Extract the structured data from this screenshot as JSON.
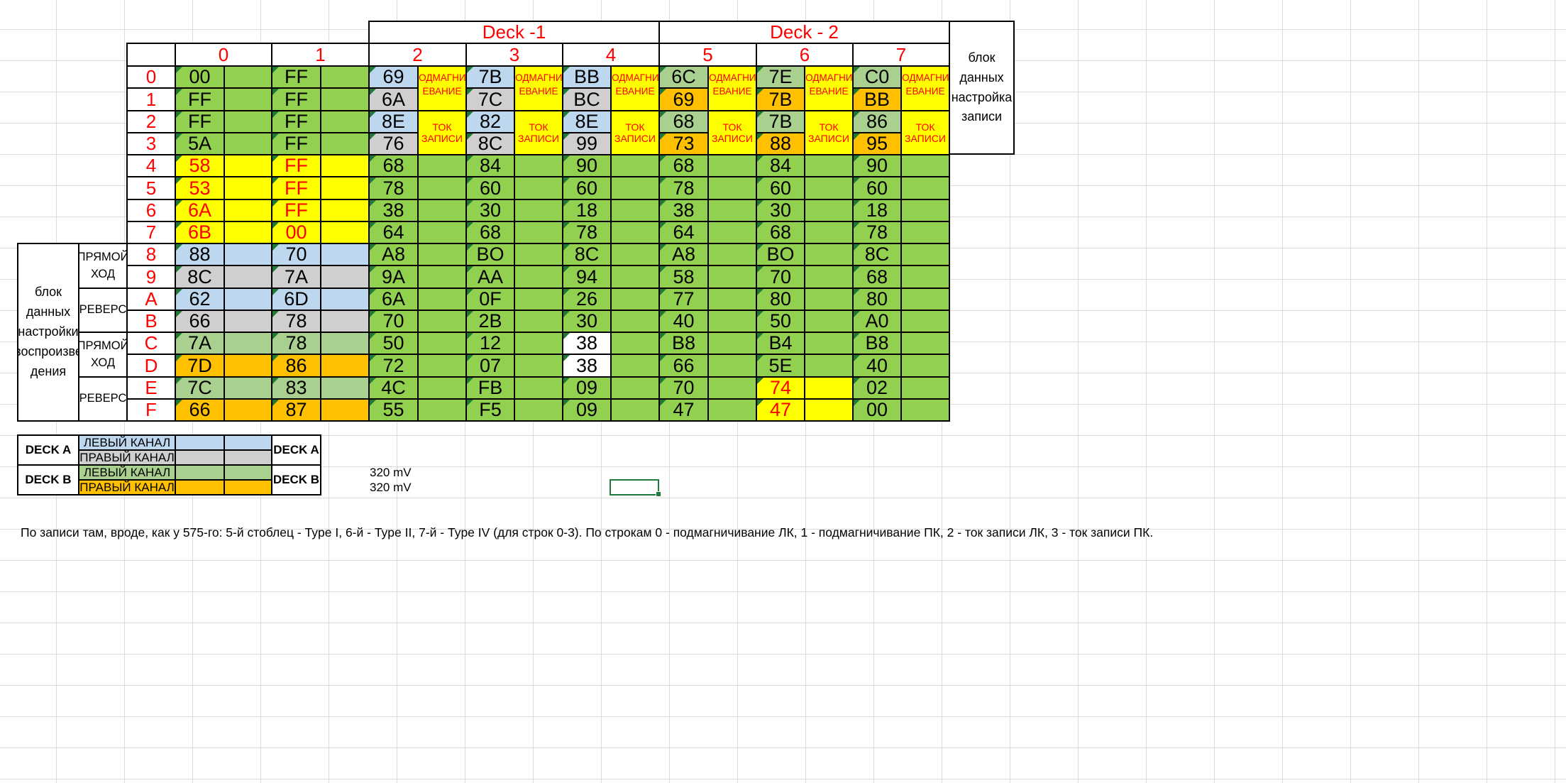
{
  "colors": {
    "green": "#92d050",
    "yellow": "#ffff00",
    "blue": "#bdd7ee",
    "gray": "#d0cece",
    "lightgreen": "#a9d08e",
    "orange": "#ffc000",
    "white": "#ffffff",
    "red": "#ff0000",
    "black": "#000000"
  },
  "groups": [
    "Deck -1",
    "Deck - 2"
  ],
  "col_headers": [
    "0",
    "1",
    "2",
    "3",
    "4",
    "5",
    "6",
    "7"
  ],
  "row_headers": [
    "0",
    "1",
    "2",
    "3",
    "4",
    "5",
    "6",
    "7",
    "8",
    "9",
    "A",
    "B",
    "C",
    "D",
    "E",
    "F"
  ],
  "write_note": "блок\nданных\nнастройка\nзаписи",
  "play_note": "блок\nданных\nнастройки\nвоспроизве\nдения",
  "direction_labels": [
    "ПРЯМОЙ\nХОД",
    "РЕВЕРС",
    "ПРЯМОЙ\nХОД",
    "РЕВЕРС"
  ],
  "bias_label": "ПОДМАГНИЧ\nЕВАНИЕ",
  "current_label": "ТОК ЗАПИСИ",
  "rows": [
    {
      "cells": [
        {
          "v": "00",
          "c": "green",
          "f": "green"
        },
        {
          "v": "FF",
          "c": "green",
          "f": "green"
        },
        {
          "v": "69",
          "c": "blue"
        },
        {
          "v": "7B",
          "c": "blue"
        },
        {
          "v": "BB",
          "c": "blue"
        },
        {
          "v": "6C",
          "c": "lightgreen"
        },
        {
          "v": "7E",
          "c": "lightgreen"
        },
        {
          "v": "C0",
          "c": "lightgreen"
        }
      ]
    },
    {
      "cells": [
        {
          "v": "FF",
          "c": "green",
          "f": "green"
        },
        {
          "v": "FF",
          "c": "green",
          "f": "green"
        },
        {
          "v": "6A",
          "c": "gray"
        },
        {
          "v": "7C",
          "c": "gray"
        },
        {
          "v": "BC",
          "c": "gray"
        },
        {
          "v": "69",
          "c": "orange"
        },
        {
          "v": "7B",
          "c": "orange"
        },
        {
          "v": "BB",
          "c": "orange"
        }
      ]
    },
    {
      "cells": [
        {
          "v": "FF",
          "c": "green",
          "f": "green"
        },
        {
          "v": "FF",
          "c": "green",
          "f": "green"
        },
        {
          "v": "8E",
          "c": "blue"
        },
        {
          "v": "82",
          "c": "blue"
        },
        {
          "v": "8E",
          "c": "blue"
        },
        {
          "v": "68",
          "c": "lightgreen"
        },
        {
          "v": "7B",
          "c": "lightgreen"
        },
        {
          "v": "86",
          "c": "lightgreen"
        }
      ]
    },
    {
      "cells": [
        {
          "v": "5A",
          "c": "green",
          "f": "green"
        },
        {
          "v": "FF",
          "c": "green",
          "f": "green"
        },
        {
          "v": "76",
          "c": "gray"
        },
        {
          "v": "8C",
          "c": "gray"
        },
        {
          "v": "99",
          "c": "gray"
        },
        {
          "v": "73",
          "c": "orange"
        },
        {
          "v": "88",
          "c": "orange"
        },
        {
          "v": "95",
          "c": "orange"
        }
      ]
    },
    {
      "cells": [
        {
          "v": "58",
          "c": "yellow",
          "f": "yellow",
          "red": true
        },
        {
          "v": "FF",
          "c": "yellow",
          "f": "yellow",
          "red": true
        },
        {
          "v": "68",
          "c": "green",
          "f": "green"
        },
        {
          "v": "84",
          "c": "green",
          "f": "green"
        },
        {
          "v": "90",
          "c": "green",
          "f": "green"
        },
        {
          "v": "68",
          "c": "green",
          "f": "green"
        },
        {
          "v": "84",
          "c": "green",
          "f": "green"
        },
        {
          "v": "90",
          "c": "green",
          "f": "green"
        }
      ]
    },
    {
      "cells": [
        {
          "v": "53",
          "c": "yellow",
          "f": "yellow",
          "red": true
        },
        {
          "v": "FF",
          "c": "yellow",
          "f": "yellow",
          "red": true
        },
        {
          "v": "78",
          "c": "green",
          "f": "green"
        },
        {
          "v": "60",
          "c": "green",
          "f": "green"
        },
        {
          "v": "60",
          "c": "green",
          "f": "green"
        },
        {
          "v": "78",
          "c": "green",
          "f": "green"
        },
        {
          "v": "60",
          "c": "green",
          "f": "green"
        },
        {
          "v": "60",
          "c": "green",
          "f": "green"
        }
      ]
    },
    {
      "cells": [
        {
          "v": "6A",
          "c": "yellow",
          "f": "yellow",
          "red": true
        },
        {
          "v": "FF",
          "c": "yellow",
          "f": "yellow",
          "red": true
        },
        {
          "v": "38",
          "c": "green",
          "f": "green"
        },
        {
          "v": "30",
          "c": "green",
          "f": "green"
        },
        {
          "v": "18",
          "c": "green",
          "f": "green"
        },
        {
          "v": "38",
          "c": "green",
          "f": "green"
        },
        {
          "v": "30",
          "c": "green",
          "f": "green"
        },
        {
          "v": "18",
          "c": "green",
          "f": "green"
        }
      ]
    },
    {
      "cells": [
        {
          "v": "6B",
          "c": "yellow",
          "f": "yellow",
          "red": true
        },
        {
          "v": "00",
          "c": "yellow",
          "f": "yellow",
          "red": true
        },
        {
          "v": "64",
          "c": "green",
          "f": "green"
        },
        {
          "v": "68",
          "c": "green",
          "f": "green"
        },
        {
          "v": "78",
          "c": "green",
          "f": "green"
        },
        {
          "v": "64",
          "c": "green",
          "f": "green"
        },
        {
          "v": "68",
          "c": "green",
          "f": "green"
        },
        {
          "v": "78",
          "c": "green",
          "f": "green"
        }
      ]
    },
    {
      "cells": [
        {
          "v": "88",
          "c": "blue",
          "f": "blue"
        },
        {
          "v": "70",
          "c": "blue",
          "f": "blue"
        },
        {
          "v": "A8",
          "c": "green",
          "f": "green"
        },
        {
          "v": "BO",
          "c": "green",
          "f": "green"
        },
        {
          "v": "8C",
          "c": "green",
          "f": "green"
        },
        {
          "v": "A8",
          "c": "green",
          "f": "green"
        },
        {
          "v": "BO",
          "c": "green",
          "f": "green"
        },
        {
          "v": "8C",
          "c": "green",
          "f": "green"
        }
      ]
    },
    {
      "cells": [
        {
          "v": "8C",
          "c": "gray",
          "f": "gray"
        },
        {
          "v": "7A",
          "c": "gray",
          "f": "gray"
        },
        {
          "v": "9A",
          "c": "green",
          "f": "green"
        },
        {
          "v": "AA",
          "c": "green",
          "f": "green"
        },
        {
          "v": "94",
          "c": "green",
          "f": "green"
        },
        {
          "v": "58",
          "c": "green",
          "f": "green"
        },
        {
          "v": "70",
          "c": "green",
          "f": "green"
        },
        {
          "v": "68",
          "c": "green",
          "f": "green"
        }
      ]
    },
    {
      "cells": [
        {
          "v": "62",
          "c": "blue",
          "f": "blue"
        },
        {
          "v": "6D",
          "c": "blue",
          "f": "blue"
        },
        {
          "v": "6A",
          "c": "green",
          "f": "green"
        },
        {
          "v": "0F",
          "c": "green",
          "f": "green"
        },
        {
          "v": "26",
          "c": "green",
          "f": "green"
        },
        {
          "v": "77",
          "c": "green",
          "f": "green"
        },
        {
          "v": "80",
          "c": "green",
          "f": "green"
        },
        {
          "v": "80",
          "c": "green",
          "f": "green"
        }
      ]
    },
    {
      "cells": [
        {
          "v": "66",
          "c": "gray",
          "f": "gray"
        },
        {
          "v": "78",
          "c": "gray",
          "f": "gray"
        },
        {
          "v": "70",
          "c": "green",
          "f": "green"
        },
        {
          "v": "2B",
          "c": "green",
          "f": "green"
        },
        {
          "v": "30",
          "c": "green",
          "f": "green"
        },
        {
          "v": "40",
          "c": "green",
          "f": "green"
        },
        {
          "v": "50",
          "c": "green",
          "f": "green"
        },
        {
          "v": "A0",
          "c": "green",
          "f": "green"
        }
      ]
    },
    {
      "cells": [
        {
          "v": "7A",
          "c": "lightgreen",
          "f": "lightgreen"
        },
        {
          "v": "78",
          "c": "lightgreen",
          "f": "lightgreen"
        },
        {
          "v": "50",
          "c": "green",
          "f": "green"
        },
        {
          "v": "12",
          "c": "green",
          "f": "green"
        },
        {
          "v": "38",
          "c": "white",
          "f": "green"
        },
        {
          "v": "B8",
          "c": "green",
          "f": "green"
        },
        {
          "v": "B4",
          "c": "green",
          "f": "green"
        },
        {
          "v": "B8",
          "c": "green",
          "f": "green"
        }
      ]
    },
    {
      "cells": [
        {
          "v": "7D",
          "c": "orange",
          "f": "orange"
        },
        {
          "v": "86",
          "c": "orange",
          "f": "orange"
        },
        {
          "v": "72",
          "c": "green",
          "f": "green"
        },
        {
          "v": "07",
          "c": "green",
          "f": "green"
        },
        {
          "v": "38",
          "c": "white",
          "f": "green"
        },
        {
          "v": "66",
          "c": "green",
          "f": "green"
        },
        {
          "v": "5E",
          "c": "green",
          "f": "green"
        },
        {
          "v": "40",
          "c": "green",
          "f": "green"
        }
      ]
    },
    {
      "cells": [
        {
          "v": "7C",
          "c": "lightgreen",
          "f": "lightgreen"
        },
        {
          "v": "83",
          "c": "lightgreen",
          "f": "lightgreen"
        },
        {
          "v": "4C",
          "c": "green",
          "f": "green"
        },
        {
          "v": "FB",
          "c": "green",
          "f": "green"
        },
        {
          "v": "09",
          "c": "green",
          "f": "green"
        },
        {
          "v": "70",
          "c": "green",
          "f": "green"
        },
        {
          "v": "74",
          "c": "yellow",
          "f": "yellow",
          "red": true
        },
        {
          "v": "02",
          "c": "green",
          "f": "green"
        }
      ]
    },
    {
      "cells": [
        {
          "v": "66",
          "c": "orange",
          "f": "orange"
        },
        {
          "v": "87",
          "c": "orange",
          "f": "orange"
        },
        {
          "v": "55",
          "c": "green",
          "f": "green"
        },
        {
          "v": "F5",
          "c": "green",
          "f": "green"
        },
        {
          "v": "09",
          "c": "green",
          "f": "green"
        },
        {
          "v": "47",
          "c": "green",
          "f": "green"
        },
        {
          "v": "47",
          "c": "yellow",
          "f": "yellow",
          "red": true
        },
        {
          "v": "00",
          "c": "green",
          "f": "green"
        }
      ]
    }
  ],
  "legend": {
    "deck_a": "DECK A",
    "deck_b": "DECK B",
    "items": [
      {
        "label": "ЛЕВЫЙ КАНАЛ",
        "c": "blue"
      },
      {
        "label": "ПРАВЫЙ КАНАЛ",
        "c": "gray"
      },
      {
        "label": "ЛЕВЫЙ КАНАЛ",
        "c": "lightgreen"
      },
      {
        "label": "ПРАВЫЙ КАНАЛ",
        "c": "orange"
      }
    ]
  },
  "mv_labels": [
    "320 mV",
    "320 mV"
  ],
  "footnote": "По записи там, вроде, как у 575-го: 5-й стоблец - Type I, 6-й - Type II, 7-й - Type IV (для строк 0-3). По строкам 0 - подмагничивание ЛК, 1 - подмагничивание ПК, 2 - ток записи ЛК, 3 - ток записи ПК."
}
